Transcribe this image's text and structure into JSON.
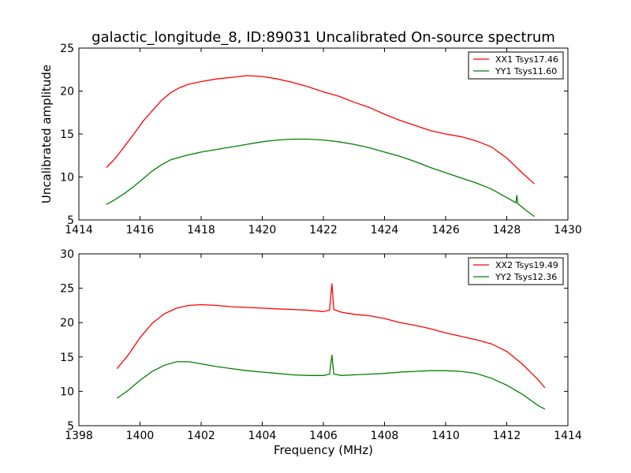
{
  "chart_data": [
    {
      "type": "line",
      "title": "galactic_longitude_8, ID:89031 Uncalibrated On-source spectrum",
      "xlabel": "",
      "ylabel": "Uncalibrated amplitude",
      "xlim": [
        1414,
        1430
      ],
      "ylim": [
        5,
        25
      ],
      "xticks": [
        1414,
        1416,
        1418,
        1420,
        1422,
        1424,
        1426,
        1428,
        1430
      ],
      "yticks": [
        5,
        10,
        15,
        20,
        25
      ],
      "legend_position": "top-right",
      "grid": false,
      "series": [
        {
          "name": "XX1 Tsys17.46",
          "color": "#ff0000",
          "points": [
            [
              1414.9,
              11.1
            ],
            [
              1415.2,
              12.2
            ],
            [
              1415.5,
              13.6
            ],
            [
              1415.8,
              15.0
            ],
            [
              1416.1,
              16.5
            ],
            [
              1416.4,
              17.7
            ],
            [
              1416.7,
              18.9
            ],
            [
              1417.0,
              19.8
            ],
            [
              1417.3,
              20.4
            ],
            [
              1417.6,
              20.8
            ],
            [
              1418.0,
              21.1
            ],
            [
              1418.5,
              21.4
            ],
            [
              1419.0,
              21.6
            ],
            [
              1419.5,
              21.8
            ],
            [
              1420.0,
              21.7
            ],
            [
              1420.5,
              21.4
            ],
            [
              1421.0,
              21.0
            ],
            [
              1421.5,
              20.5
            ],
            [
              1422.0,
              19.9
            ],
            [
              1422.5,
              19.4
            ],
            [
              1423.0,
              18.7
            ],
            [
              1423.5,
              18.1
            ],
            [
              1424.0,
              17.3
            ],
            [
              1424.5,
              16.6
            ],
            [
              1425.0,
              16.0
            ],
            [
              1425.5,
              15.4
            ],
            [
              1426.0,
              15.0
            ],
            [
              1426.5,
              14.7
            ],
            [
              1427.0,
              14.2
            ],
            [
              1427.5,
              13.5
            ],
            [
              1428.0,
              12.2
            ],
            [
              1428.5,
              10.5
            ],
            [
              1428.9,
              9.2
            ]
          ]
        },
        {
          "name": "YY1 Tsys11.60",
          "color": "#008000",
          "points": [
            [
              1414.9,
              6.8
            ],
            [
              1415.2,
              7.4
            ],
            [
              1415.5,
              8.1
            ],
            [
              1415.8,
              8.9
            ],
            [
              1416.1,
              9.8
            ],
            [
              1416.4,
              10.7
            ],
            [
              1416.7,
              11.4
            ],
            [
              1417.0,
              12.0
            ],
            [
              1417.5,
              12.5
            ],
            [
              1418.0,
              12.9
            ],
            [
              1418.5,
              13.2
            ],
            [
              1419.0,
              13.5
            ],
            [
              1419.5,
              13.8
            ],
            [
              1420.0,
              14.1
            ],
            [
              1420.5,
              14.3
            ],
            [
              1421.0,
              14.4
            ],
            [
              1421.5,
              14.4
            ],
            [
              1422.0,
              14.3
            ],
            [
              1422.5,
              14.1
            ],
            [
              1423.0,
              13.8
            ],
            [
              1423.5,
              13.4
            ],
            [
              1424.0,
              12.9
            ],
            [
              1424.5,
              12.4
            ],
            [
              1425.0,
              11.8
            ],
            [
              1425.5,
              11.1
            ],
            [
              1426.0,
              10.5
            ],
            [
              1426.5,
              9.9
            ],
            [
              1427.0,
              9.3
            ],
            [
              1427.5,
              8.6
            ],
            [
              1428.0,
              7.6
            ],
            [
              1428.3,
              7.0
            ],
            [
              1428.33,
              7.9
            ],
            [
              1428.36,
              6.9
            ],
            [
              1428.6,
              6.2
            ],
            [
              1428.9,
              5.4
            ]
          ]
        }
      ]
    },
    {
      "type": "line",
      "title": "",
      "xlabel": "Frequency (MHz)",
      "ylabel": "",
      "xlim": [
        1398,
        1414
      ],
      "ylim": [
        5,
        30
      ],
      "xticks": [
        1398,
        1400,
        1402,
        1404,
        1406,
        1408,
        1410,
        1412,
        1414
      ],
      "yticks": [
        5,
        10,
        15,
        20,
        25,
        30
      ],
      "legend_position": "top-right",
      "grid": false,
      "series": [
        {
          "name": "XX2 Tsys19.49",
          "color": "#ff0000",
          "points": [
            [
              1399.25,
              13.3
            ],
            [
              1399.6,
              15.2
            ],
            [
              1400.0,
              17.8
            ],
            [
              1400.4,
              19.9
            ],
            [
              1400.8,
              21.3
            ],
            [
              1401.2,
              22.1
            ],
            [
              1401.6,
              22.5
            ],
            [
              1402.0,
              22.6
            ],
            [
              1402.5,
              22.5
            ],
            [
              1403.0,
              22.3
            ],
            [
              1403.5,
              22.2
            ],
            [
              1404.0,
              22.1
            ],
            [
              1404.5,
              22.0
            ],
            [
              1405.0,
              21.9
            ],
            [
              1405.5,
              21.8
            ],
            [
              1406.0,
              21.6
            ],
            [
              1406.2,
              21.8
            ],
            [
              1406.28,
              25.7
            ],
            [
              1406.34,
              21.9
            ],
            [
              1406.6,
              21.5
            ],
            [
              1407.0,
              21.2
            ],
            [
              1407.5,
              21.0
            ],
            [
              1408.0,
              20.6
            ],
            [
              1408.5,
              20.0
            ],
            [
              1409.0,
              19.6
            ],
            [
              1409.5,
              19.1
            ],
            [
              1410.0,
              18.5
            ],
            [
              1410.5,
              18.0
            ],
            [
              1411.0,
              17.5
            ],
            [
              1411.5,
              16.9
            ],
            [
              1412.0,
              15.8
            ],
            [
              1412.5,
              14.0
            ],
            [
              1413.0,
              11.8
            ],
            [
              1413.25,
              10.5
            ]
          ]
        },
        {
          "name": "YY2 Tsys12.36",
          "color": "#008000",
          "points": [
            [
              1399.25,
              9.0
            ],
            [
              1399.6,
              10.1
            ],
            [
              1400.0,
              11.6
            ],
            [
              1400.4,
              12.9
            ],
            [
              1400.8,
              13.8
            ],
            [
              1401.2,
              14.3
            ],
            [
              1401.6,
              14.3
            ],
            [
              1402.0,
              14.0
            ],
            [
              1402.5,
              13.6
            ],
            [
              1403.0,
              13.3
            ],
            [
              1403.5,
              13.0
            ],
            [
              1404.0,
              12.8
            ],
            [
              1404.5,
              12.6
            ],
            [
              1405.0,
              12.4
            ],
            [
              1405.5,
              12.3
            ],
            [
              1406.0,
              12.3
            ],
            [
              1406.2,
              12.5
            ],
            [
              1406.28,
              15.3
            ],
            [
              1406.34,
              12.5
            ],
            [
              1406.6,
              12.3
            ],
            [
              1407.0,
              12.4
            ],
            [
              1407.5,
              12.5
            ],
            [
              1408.0,
              12.6
            ],
            [
              1408.5,
              12.8
            ],
            [
              1409.0,
              12.9
            ],
            [
              1409.5,
              13.0
            ],
            [
              1410.0,
              13.0
            ],
            [
              1410.5,
              12.9
            ],
            [
              1411.0,
              12.6
            ],
            [
              1411.5,
              11.9
            ],
            [
              1412.0,
              10.9
            ],
            [
              1412.5,
              9.6
            ],
            [
              1413.0,
              8.0
            ],
            [
              1413.25,
              7.4
            ]
          ]
        }
      ]
    }
  ]
}
